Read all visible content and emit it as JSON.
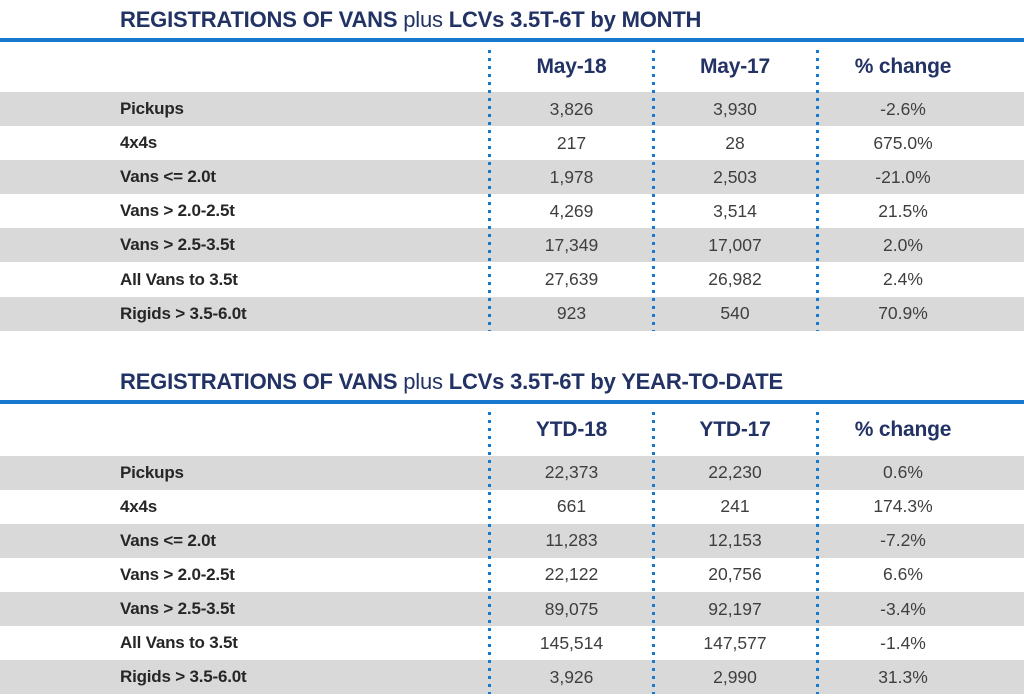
{
  "colors": {
    "navy_heading": "#223264",
    "rule_blue": "#1878cf",
    "stripe_gray": "#d9d9d9",
    "label_text": "#262626",
    "value_text": "#3f3f3f"
  },
  "tables": [
    {
      "title_bold_1": "REGISTRATIONS OF VANS",
      "title_mid": " plus ",
      "title_bold_2": "LCVs 3.5T-6T by MONTH",
      "columns": [
        "May-18",
        "May-17",
        "% change"
      ],
      "rows": [
        {
          "label": "Pickups",
          "v1": "3,826",
          "v2": "3,930",
          "change": "-2.6%"
        },
        {
          "label": "4x4s",
          "v1": "217",
          "v2": "28",
          "change": "675.0%"
        },
        {
          "label": "Vans <= 2.0t",
          "v1": "1,978",
          "v2": "2,503",
          "change": "-21.0%"
        },
        {
          "label": "Vans > 2.0-2.5t",
          "v1": "4,269",
          "v2": "3,514",
          "change": "21.5%"
        },
        {
          "label": "Vans > 2.5-3.5t",
          "v1": "17,349",
          "v2": "17,007",
          "change": "2.0%"
        },
        {
          "label": "All Vans to 3.5t",
          "v1": "27,639",
          "v2": "26,982",
          "change": "2.4%"
        },
        {
          "label": "Rigids > 3.5-6.0t",
          "v1": "923",
          "v2": "540",
          "change": "70.9%"
        }
      ]
    },
    {
      "title_bold_1": "REGISTRATIONS OF VANS",
      "title_mid": " plus ",
      "title_bold_2": "LCVs 3.5T-6T by YEAR-TO-DATE",
      "columns": [
        "YTD-18",
        "YTD-17",
        "% change"
      ],
      "rows": [
        {
          "label": "Pickups",
          "v1": "22,373",
          "v2": "22,230",
          "change": "0.6%"
        },
        {
          "label": "4x4s",
          "v1": "661",
          "v2": "241",
          "change": "174.3%"
        },
        {
          "label": "Vans <= 2.0t",
          "v1": "11,283",
          "v2": "12,153",
          "change": "-7.2%"
        },
        {
          "label": "Vans > 2.0-2.5t",
          "v1": "22,122",
          "v2": "20,756",
          "change": "6.6%"
        },
        {
          "label": "Vans > 2.5-3.5t",
          "v1": "89,075",
          "v2": "92,197",
          "change": "-3.4%"
        },
        {
          "label": "All Vans to 3.5t",
          "v1": "145,514",
          "v2": "147,577",
          "change": "-1.4%"
        },
        {
          "label": "Rigids > 3.5-6.0t",
          "v1": "3,926",
          "v2": "2,990",
          "change": "31.3%"
        }
      ]
    }
  ]
}
